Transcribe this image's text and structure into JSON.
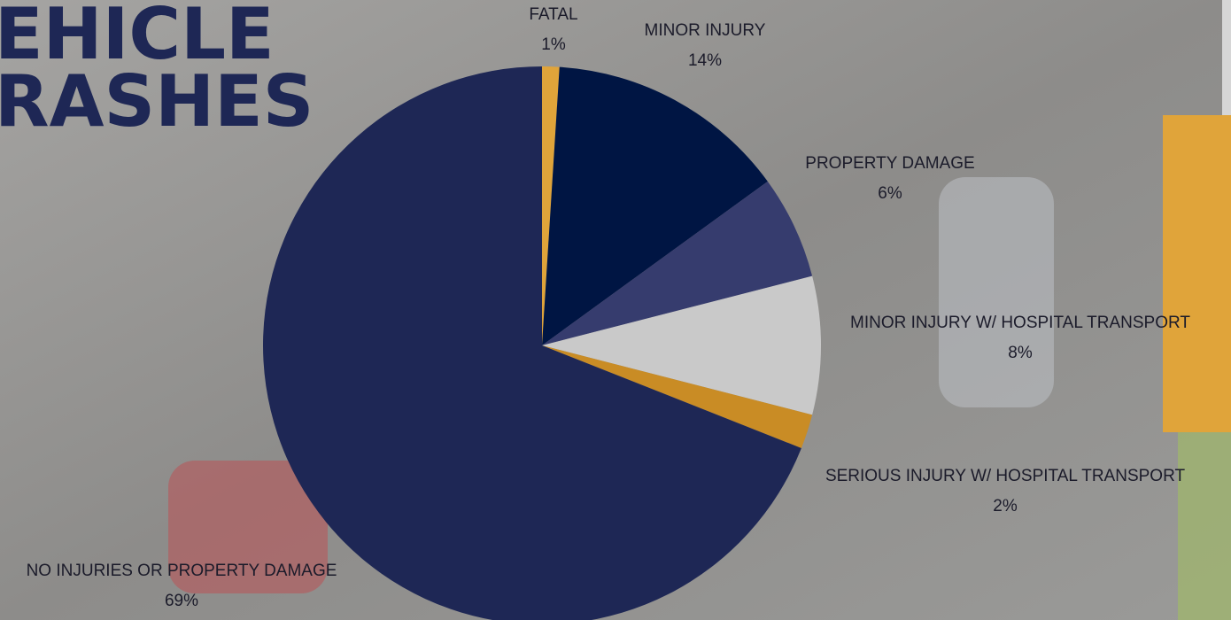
{
  "chart_data": {
    "type": "pie",
    "title": [
      "EHICLE",
      "RASHES"
    ],
    "categories": [
      "FATAL",
      "MINOR INJURY",
      "PROPERTY DAMAGE",
      "MINOR INJURY W/ HOSPITAL TRANSPORT",
      "SERIOUS INJURY W/ HOSPITAL TRANSPORT",
      "NO INJURIES OR PROPERTY DAMAGE"
    ],
    "values": [
      1,
      14,
      6,
      8,
      2,
      69
    ],
    "value_labels": [
      "1%",
      "14%",
      "6%",
      "8%",
      "2%",
      "69%"
    ],
    "colors": [
      "#e0a43a",
      "#001543",
      "#363c6e",
      "#c9c9c9",
      "#c98c25",
      "#1e2755"
    ]
  }
}
